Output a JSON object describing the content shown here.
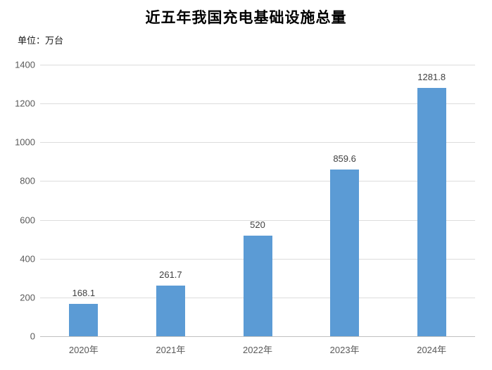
{
  "unit_label": "单位：万台",
  "colors": {
    "bar": "#5B9BD5",
    "gridline": "#dcdcdc",
    "axis_line": "#c0c0c0",
    "tick_label": "#595959",
    "value_label": "#404040",
    "title": "#000000"
  },
  "chart_data": {
    "type": "bar",
    "title": "近五年我国充电基础设施总量",
    "unit_label": "单位：万台",
    "categories": [
      "2020年",
      "2021年",
      "2022年",
      "2023年",
      "2024年"
    ],
    "values": [
      168.1,
      261.7,
      520,
      859.6,
      1281.8
    ],
    "data_labels": [
      "168.1",
      "261.7",
      "520",
      "859.6",
      "1281.8"
    ],
    "xlabel": "",
    "ylabel": "单位：万台",
    "ylim": [
      0,
      1400
    ],
    "yticks": [
      0,
      200,
      400,
      600,
      800,
      1000,
      1200,
      1400
    ],
    "grid": true,
    "legend": false,
    "data_labels_shown": true
  }
}
